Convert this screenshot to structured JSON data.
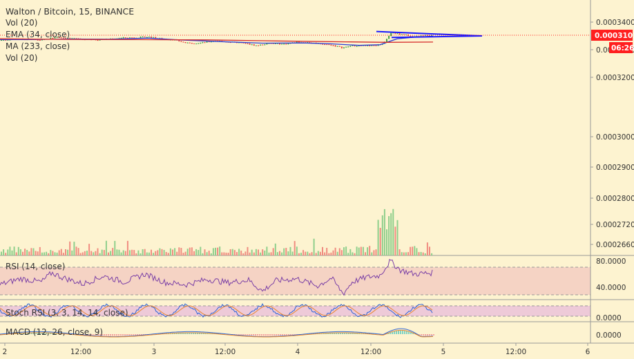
{
  "legend": {
    "title": "Walton / Bitcoin, 15, BINANCE",
    "lines": [
      "Vol (20)",
      "EMA (34, close)",
      "MA (233, close)",
      "Vol (20)"
    ]
  },
  "panes": {
    "rsi": "RSI (14, close)",
    "stoch": "Stoch RSI (3, 3, 14, 14, close)",
    "macd": "MACD (12, 26, close, 9)"
  },
  "price_tag": {
    "value": "0.0003101",
    "countdown": "06:26",
    "color": "#ff1f1f"
  },
  "colors": {
    "up": "#41a243",
    "down": "#e5443a",
    "ema": "#2b3fd6",
    "ma": "#d62a2a",
    "triangle": "#1a1aff",
    "rsi": "#7a3fa6",
    "background": "#fdf3d0"
  },
  "chart_data": [
    {
      "type": "candlestick",
      "title": "Walton / Bitcoin, 15, BINANCE",
      "y_ticks": [
        "0.0003400",
        "0.0003300",
        "0.0003200",
        "0.0003000",
        "0.0002900",
        "0.0002800",
        "0.0002720",
        "0.0002660"
      ],
      "ylim": [
        0.000264,
        0.000346
      ],
      "x_ticks": [
        "2",
        "12:00",
        "3",
        "12:00",
        "4",
        "12:00",
        "5",
        "12:00",
        "6"
      ],
      "last_price": 0.0003101,
      "price_path": [
        [
          0,
          0.000299
        ],
        [
          20,
          0.0003015
        ],
        [
          40,
          0.0003
        ],
        [
          60,
          0.000299
        ],
        [
          80,
          0.0003055
        ],
        [
          100,
          0.0003035
        ],
        [
          120,
          0.0003005
        ],
        [
          140,
          0.0002995
        ],
        [
          160,
          0.000302
        ],
        [
          180,
          0.0003045
        ],
        [
          200,
          0.000305
        ],
        [
          215,
          0.0003065
        ],
        [
          230,
          0.0003025
        ],
        [
          250,
          0.0003
        ],
        [
          270,
          0.000292
        ],
        [
          290,
          0.0002925
        ],
        [
          310,
          0.0002975
        ],
        [
          330,
          0.000295
        ],
        [
          350,
          0.0002925
        ],
        [
          370,
          0.0002865
        ],
        [
          390,
          0.0002915
        ],
        [
          410,
          0.00029
        ],
        [
          430,
          0.0002945
        ],
        [
          445,
          0.0002935
        ],
        [
          460,
          0.0002915
        ],
        [
          480,
          0.0002875
        ],
        [
          495,
          0.0002815
        ],
        [
          510,
          0.0002865
        ],
        [
          530,
          0.000286
        ],
        [
          545,
          0.000287
        ],
        [
          555,
          0.0002925
        ],
        [
          565,
          0.000316
        ],
        [
          575,
          0.0003135
        ],
        [
          585,
          0.0003115
        ],
        [
          595,
          0.000307
        ],
        [
          605,
          0.000308
        ],
        [
          615,
          0.0003095
        ],
        [
          627,
          0.0003101
        ]
      ],
      "series": [
        {
          "name": "EMA (34, close)",
          "color": "#2b3fd6",
          "points": [
            [
              0,
              0.0003
            ],
            [
              40,
              0.0003
            ],
            [
              100,
              0.0003015
            ],
            [
              160,
              0.000301
            ],
            [
              215,
              0.0003035
            ],
            [
              260,
              0.0002995
            ],
            [
              320,
              0.0002955
            ],
            [
              380,
              0.000292
            ],
            [
              440,
              0.0002925
            ],
            [
              480,
              0.0002905
            ],
            [
              520,
              0.000287
            ],
            [
              550,
              0.0002885
            ],
            [
              575,
              0.000302
            ],
            [
              600,
              0.0003055
            ],
            [
              627,
              0.000308
            ]
          ]
        },
        {
          "name": "MA (233, close)",
          "color": "#d62a2a",
          "points": [
            [
              0,
              0.000302
            ],
            [
              100,
              0.0003005
            ],
            [
              200,
              0.0003
            ],
            [
              300,
              0.0002995
            ],
            [
              400,
              0.000297
            ],
            [
              500,
              0.000295
            ],
            [
              560,
              0.000294
            ],
            [
              627,
              0.0002945
            ]
          ]
        }
      ],
      "triangle": {
        "color": "#1a1aff",
        "upper": [
          [
            545,
            0.0003185
          ],
          [
            698,
            0.0003085
          ]
        ],
        "lower": [
          [
            567,
            0.000305
          ],
          [
            698,
            0.0003085
          ]
        ]
      }
    },
    {
      "type": "bar",
      "title": "Vol (20)",
      "note": "volume histogram colored by candle direction; spikes near 12:00 on day 4"
    },
    {
      "type": "line",
      "title": "RSI (14, close)",
      "y_ticks": [
        "80.0000",
        "40.0000"
      ],
      "ylim": [
        20,
        90
      ],
      "band": [
        30,
        70
      ],
      "values_x": [
        0,
        30,
        60,
        75,
        90,
        120,
        150,
        180,
        210,
        240,
        270,
        300,
        330,
        360,
        380,
        400,
        430,
        460,
        480,
        497,
        510,
        530,
        550,
        565,
        580,
        600,
        627
      ],
      "values": [
        44,
        53,
        48,
        62,
        55,
        45,
        57,
        48,
        60,
        47,
        44,
        52,
        47,
        51,
        34,
        50,
        53,
        42,
        54,
        30,
        48,
        55,
        58,
        80,
        66,
        60,
        62
      ]
    },
    {
      "type": "line",
      "title": "Stoch RSI (3, 3, 14, 14, close)",
      "y_ticks": [
        "0.0000"
      ],
      "ylim": [
        0,
        100
      ],
      "band": [
        20,
        80
      ]
    },
    {
      "type": "line",
      "title": "MACD (12, 26, close, 9)",
      "y_ticks": [
        "0.0000"
      ]
    }
  ]
}
